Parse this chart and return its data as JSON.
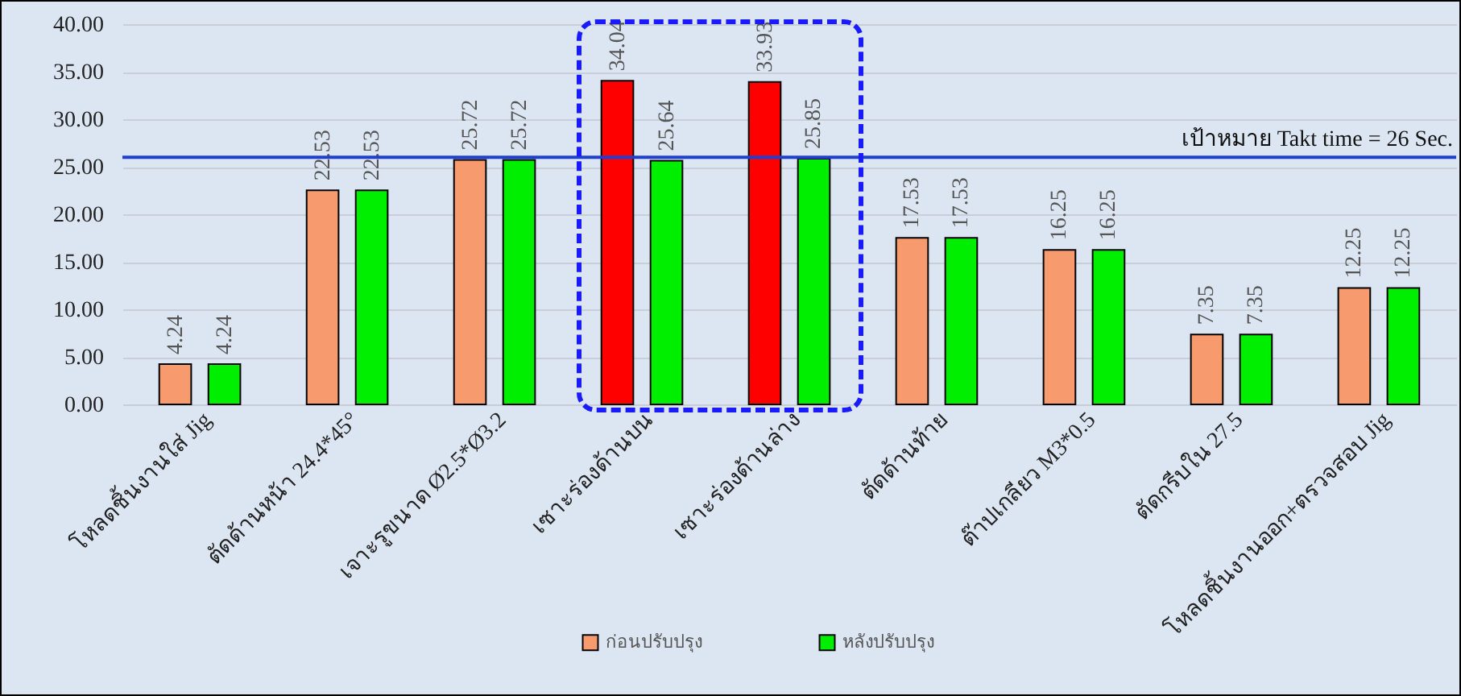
{
  "chart_data": {
    "type": "bar",
    "categories": [
      "โหลดชิ้นงานใส่ Jig",
      "ตัดด้านหน้า 24.4*45°",
      "เจาะรูขนาด Ø2.5*Ø3.2",
      "เซาะร่องด้านบน",
      "เซาะร่องด้านล่าง",
      "ตัดด้านท้าย",
      "ต๊าปเกลียว M3*0.5",
      "ตัดกรีบใน 27.5",
      "โหลดชิ้นงานออก+ตรวจสอบ Jig"
    ],
    "series": [
      {
        "name": "ก่อนปรับปรุง",
        "color": "#f79b6e",
        "colors": [
          "#f79b6e",
          "#f79b6e",
          "#f79b6e",
          "#ff0000",
          "#ff0000",
          "#f79b6e",
          "#f79b6e",
          "#f79b6e",
          "#f79b6e"
        ],
        "values": [
          4.24,
          22.53,
          25.72,
          34.04,
          33.93,
          17.53,
          16.25,
          7.35,
          12.25
        ]
      },
      {
        "name": "หลังปรับปรุง",
        "color": "#00ee00",
        "values": [
          4.24,
          22.53,
          25.72,
          25.64,
          25.85,
          17.53,
          16.25,
          7.35,
          12.25
        ]
      }
    ],
    "ylim": [
      0,
      40
    ],
    "yticks": [
      {
        "value": 0,
        "label": "0.00"
      },
      {
        "value": 5,
        "label": "5.00"
      },
      {
        "value": 10,
        "label": "10.00"
      },
      {
        "value": 15,
        "label": "15.00"
      },
      {
        "value": 20,
        "label": "20.00"
      },
      {
        "value": 25,
        "label": "25.00"
      },
      {
        "value": 30,
        "label": "30.00"
      },
      {
        "value": 35,
        "label": "35.00"
      },
      {
        "value": 40,
        "label": "40.00"
      }
    ],
    "grid": "y",
    "legend": "bottom",
    "data_labels": true,
    "ref_lines": [
      {
        "axis": "y",
        "value": 26,
        "label": "เป้าหมาย Takt time = 26 Sec.",
        "color": "#1f3fd0"
      }
    ]
  }
}
